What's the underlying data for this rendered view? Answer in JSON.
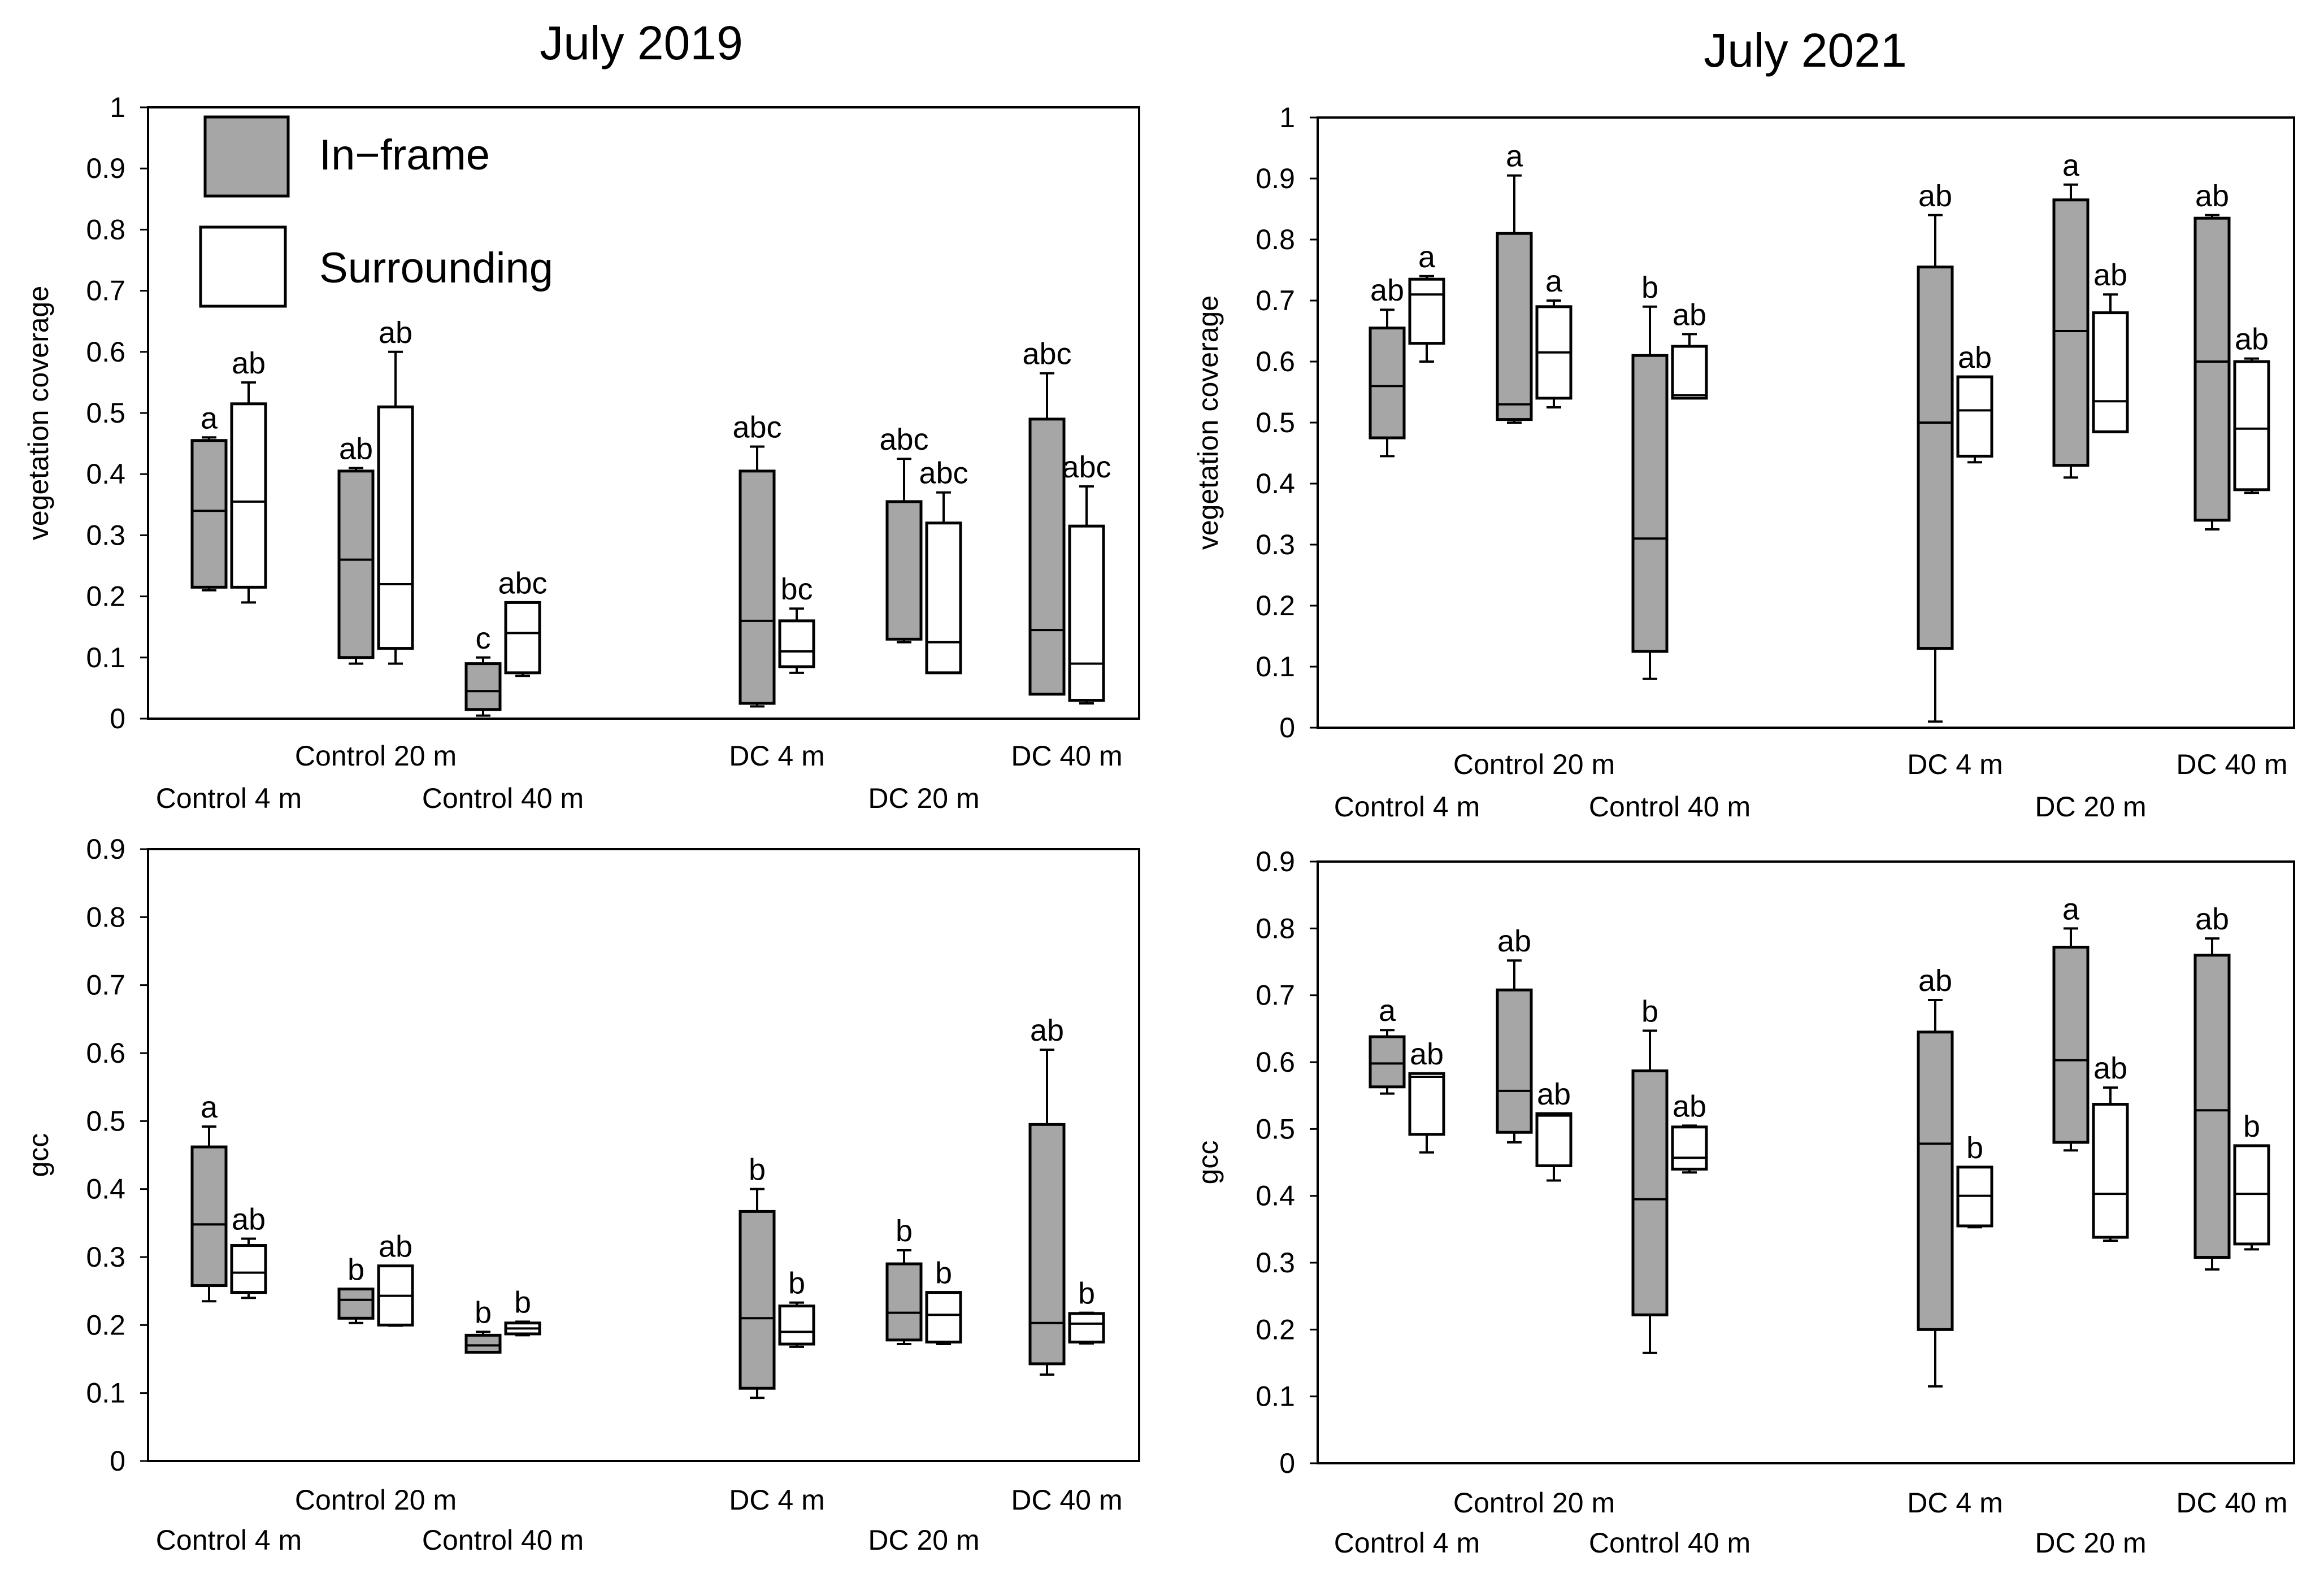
{
  "colors": {
    "in_frame": "#a6a6a6",
    "surrounding": "#ffffff",
    "stroke": "#000000"
  },
  "legend": {
    "in_frame": "In−frame",
    "surrounding": "Surrounding"
  },
  "chart_data": [
    {
      "type": "box",
      "title": "July 2019",
      "ylabel": "vegetation coverage",
      "ylim": [
        0,
        1
      ],
      "yticks": [
        "0",
        "0.1",
        "0.2",
        "0.3",
        "0.4",
        "0.5",
        "0.6",
        "0.7",
        "0.8",
        "0.9",
        "1"
      ],
      "categories": [
        "Control 4 m",
        "Control 20 m",
        "Control 40 m",
        "DC 4 m",
        "DC 20 m",
        "DC 40 m"
      ],
      "series": [
        {
          "name": "In−frame",
          "boxes": [
            {
              "min": 0.21,
              "q1": 0.215,
              "median": 0.34,
              "q3": 0.455,
              "max": 0.46,
              "label": "a"
            },
            {
              "min": 0.09,
              "q1": 0.1,
              "median": 0.26,
              "q3": 0.405,
              "max": 0.41,
              "label": "ab"
            },
            {
              "min": 0.005,
              "q1": 0.015,
              "median": 0.045,
              "q3": 0.09,
              "max": 0.1,
              "label": "c"
            },
            {
              "min": 0.02,
              "q1": 0.025,
              "median": 0.16,
              "q3": 0.405,
              "max": 0.445,
              "label": "abc"
            },
            {
              "min": 0.125,
              "q1": 0.13,
              "median": 0.13,
              "q3": 0.355,
              "max": 0.425,
              "label": "abc"
            },
            {
              "min": 0.04,
              "q1": 0.04,
              "median": 0.145,
              "q3": 0.49,
              "max": 0.565,
              "label": "abc"
            }
          ]
        },
        {
          "name": "Surrounding",
          "boxes": [
            {
              "min": 0.19,
              "q1": 0.215,
              "median": 0.355,
              "q3": 0.515,
              "max": 0.55,
              "label": "ab"
            },
            {
              "min": 0.09,
              "q1": 0.115,
              "median": 0.22,
              "q3": 0.51,
              "max": 0.6,
              "label": "ab"
            },
            {
              "min": 0.07,
              "q1": 0.075,
              "median": 0.14,
              "q3": 0.19,
              "max": 0.19,
              "label": "abc"
            },
            {
              "min": 0.075,
              "q1": 0.085,
              "median": 0.11,
              "q3": 0.16,
              "max": 0.18,
              "label": "bc"
            },
            {
              "min": 0.075,
              "q1": 0.075,
              "median": 0.125,
              "q3": 0.32,
              "max": 0.37,
              "label": "abc"
            },
            {
              "min": 0.025,
              "q1": 0.03,
              "median": 0.09,
              "q3": 0.315,
              "max": 0.38,
              "label": "abc"
            }
          ]
        }
      ]
    },
    {
      "type": "box",
      "title": "July 2021",
      "ylabel": "vegetation coverage",
      "ylim": [
        0,
        1
      ],
      "yticks": [
        "0",
        "0.1",
        "0.2",
        "0.3",
        "0.4",
        "0.5",
        "0.6",
        "0.7",
        "0.8",
        "0.9",
        "1"
      ],
      "categories": [
        "Control 4 m",
        "Control 20 m",
        "Control 40 m",
        "DC 4 m",
        "DC 20 m",
        "DC 40 m"
      ],
      "series": [
        {
          "name": "In−frame",
          "boxes": [
            {
              "min": 0.445,
              "q1": 0.475,
              "median": 0.56,
              "q3": 0.655,
              "max": 0.685,
              "label": "ab"
            },
            {
              "min": 0.5,
              "q1": 0.505,
              "median": 0.53,
              "q3": 0.81,
              "max": 0.905,
              "label": "a"
            },
            {
              "min": 0.08,
              "q1": 0.125,
              "median": 0.31,
              "q3": 0.61,
              "max": 0.69,
              "label": "b"
            },
            {
              "min": 0.01,
              "q1": 0.13,
              "median": 0.5,
              "q3": 0.755,
              "max": 0.84,
              "label": "ab"
            },
            {
              "min": 0.41,
              "q1": 0.43,
              "median": 0.65,
              "q3": 0.865,
              "max": 0.89,
              "label": "a"
            },
            {
              "min": 0.325,
              "q1": 0.34,
              "median": 0.6,
              "q3": 0.835,
              "max": 0.84,
              "label": "ab"
            }
          ]
        },
        {
          "name": "Surrounding",
          "boxes": [
            {
              "min": 0.6,
              "q1": 0.63,
              "median": 0.71,
              "q3": 0.735,
              "max": 0.74,
              "label": "a"
            },
            {
              "min": 0.525,
              "q1": 0.54,
              "median": 0.615,
              "q3": 0.69,
              "max": 0.7,
              "label": "a"
            },
            {
              "min": 0.54,
              "q1": 0.54,
              "median": 0.545,
              "q3": 0.625,
              "max": 0.645,
              "label": "ab"
            },
            {
              "min": 0.435,
              "q1": 0.445,
              "median": 0.52,
              "q3": 0.575,
              "max": 0.575,
              "label": "ab"
            },
            {
              "min": 0.485,
              "q1": 0.485,
              "median": 0.535,
              "q3": 0.68,
              "max": 0.71,
              "label": "ab"
            },
            {
              "min": 0.385,
              "q1": 0.39,
              "median": 0.49,
              "q3": 0.6,
              "max": 0.605,
              "label": "ab"
            }
          ]
        }
      ]
    },
    {
      "type": "box",
      "title": "",
      "ylabel": "gcc",
      "ylim": [
        0,
        0.9
      ],
      "yticks": [
        "0",
        "0.1",
        "0.2",
        "0.3",
        "0.4",
        "0.5",
        "0.6",
        "0.7",
        "0.8",
        "0.9"
      ],
      "categories": [
        "Control 4 m",
        "Control 20 m",
        "Control 40 m",
        "DC 4 m",
        "DC 20 m",
        "DC 40 m"
      ],
      "series": [
        {
          "name": "In−frame",
          "boxes": [
            {
              "min": 0.235,
              "q1": 0.258,
              "median": 0.348,
              "q3": 0.462,
              "max": 0.492,
              "label": "a"
            },
            {
              "min": 0.203,
              "q1": 0.21,
              "median": 0.237,
              "q3": 0.253,
              "max": 0.253,
              "label": "b"
            },
            {
              "min": 0.16,
              "q1": 0.16,
              "median": 0.17,
              "q3": 0.185,
              "max": 0.19,
              "label": "b"
            },
            {
              "min": 0.093,
              "q1": 0.107,
              "median": 0.21,
              "q3": 0.367,
              "max": 0.4,
              "label": "b"
            },
            {
              "min": 0.172,
              "q1": 0.178,
              "median": 0.218,
              "q3": 0.29,
              "max": 0.31,
              "label": "b"
            },
            {
              "min": 0.127,
              "q1": 0.143,
              "median": 0.203,
              "q3": 0.495,
              "max": 0.605,
              "label": "ab"
            }
          ]
        },
        {
          "name": "Surrounding",
          "boxes": [
            {
              "min": 0.24,
              "q1": 0.248,
              "median": 0.277,
              "q3": 0.317,
              "max": 0.327,
              "label": "ab"
            },
            {
              "min": 0.199,
              "q1": 0.2,
              "median": 0.243,
              "q3": 0.287,
              "max": 0.287,
              "label": "ab"
            },
            {
              "min": 0.185,
              "q1": 0.187,
              "median": 0.195,
              "q3": 0.203,
              "max": 0.205,
              "label": "b"
            },
            {
              "min": 0.168,
              "q1": 0.172,
              "median": 0.19,
              "q3": 0.228,
              "max": 0.233,
              "label": "b"
            },
            {
              "min": 0.172,
              "q1": 0.175,
              "median": 0.215,
              "q3": 0.248,
              "max": 0.248,
              "label": "b"
            },
            {
              "min": 0.173,
              "q1": 0.175,
              "median": 0.202,
              "q3": 0.217,
              "max": 0.218,
              "label": "b"
            }
          ]
        }
      ]
    },
    {
      "type": "box",
      "title": "",
      "ylabel": "gcc",
      "ylim": [
        0,
        0.9
      ],
      "yticks": [
        "0",
        "0.1",
        "0.2",
        "0.3",
        "0.4",
        "0.5",
        "0.6",
        "0.7",
        "0.8",
        "0.9"
      ],
      "categories": [
        "Control 4 m",
        "Control 20 m",
        "Control 40 m",
        "DC 4 m",
        "DC 20 m",
        "DC 40 m"
      ],
      "series": [
        {
          "name": "In−frame",
          "boxes": [
            {
              "min": 0.553,
              "q1": 0.563,
              "median": 0.598,
              "q3": 0.638,
              "max": 0.648,
              "label": "a"
            },
            {
              "min": 0.48,
              "q1": 0.495,
              "median": 0.557,
              "q3": 0.708,
              "max": 0.752,
              "label": "ab"
            },
            {
              "min": 0.165,
              "q1": 0.222,
              "median": 0.395,
              "q3": 0.587,
              "max": 0.647,
              "label": "b"
            },
            {
              "min": 0.115,
              "q1": 0.2,
              "median": 0.478,
              "q3": 0.645,
              "max": 0.693,
              "label": "ab"
            },
            {
              "min": 0.468,
              "q1": 0.48,
              "median": 0.603,
              "q3": 0.772,
              "max": 0.8,
              "label": "a"
            },
            {
              "min": 0.29,
              "q1": 0.308,
              "median": 0.528,
              "q3": 0.76,
              "max": 0.785,
              "label": "ab"
            }
          ]
        },
        {
          "name": "Surrounding",
          "boxes": [
            {
              "min": 0.465,
              "q1": 0.492,
              "median": 0.578,
              "q3": 0.583,
              "max": 0.583,
              "label": "ab"
            },
            {
              "min": 0.423,
              "q1": 0.445,
              "median": 0.52,
              "q3": 0.523,
              "max": 0.523,
              "label": "ab"
            },
            {
              "min": 0.435,
              "q1": 0.44,
              "median": 0.457,
              "q3": 0.503,
              "max": 0.505,
              "label": "ab"
            },
            {
              "min": 0.353,
              "q1": 0.355,
              "median": 0.4,
              "q3": 0.443,
              "max": 0.443,
              "label": "b"
            },
            {
              "min": 0.333,
              "q1": 0.338,
              "median": 0.403,
              "q3": 0.537,
              "max": 0.562,
              "label": "ab"
            },
            {
              "min": 0.32,
              "q1": 0.328,
              "median": 0.403,
              "q3": 0.475,
              "max": 0.475,
              "label": "b"
            }
          ]
        }
      ]
    }
  ]
}
